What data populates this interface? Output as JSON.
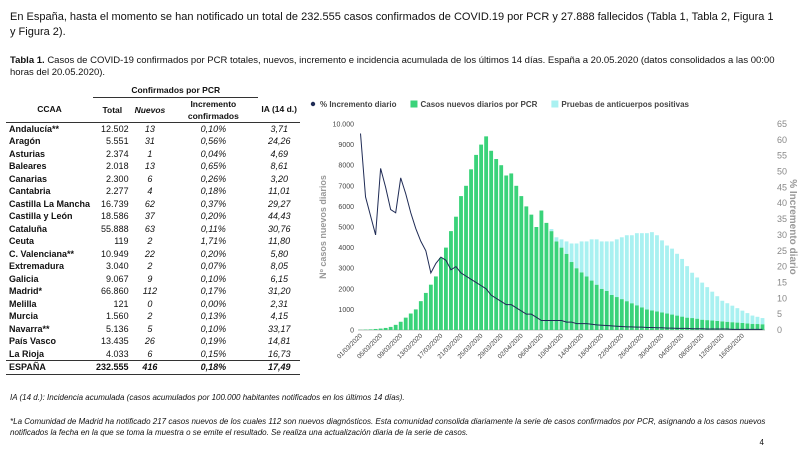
{
  "intro": "En España, hasta el momento se han notificado un total de 232.555 casos confirmados de COVID.19 por PCR y 27.888 fallecidos (Tabla 1, Tabla 2, Figura 1 y Figura 2).",
  "caption": {
    "label": "Tabla 1.",
    "text": "Casos de COVID-19 confirmados por PCR totales, nuevos, incremento e incidencia acumulada de los últimos 14 días. España a 20.05.2020 (datos consolidados a las 00:00 horas del 20.05.2020)."
  },
  "table": {
    "group_header": "Confirmados por PCR",
    "columns": [
      "CCAA",
      "Total",
      "Nuevos",
      "Incremento confirmados",
      "IA (14 d.)"
    ],
    "rows": [
      [
        "Andalucía**",
        "12.502",
        "13",
        "0,10%",
        "3,71"
      ],
      [
        "Aragón",
        "5.551",
        "31",
        "0,56%",
        "24,26"
      ],
      [
        "Asturias",
        "2.374",
        "1",
        "0,04%",
        "4,69"
      ],
      [
        "Baleares",
        "2.018",
        "13",
        "0,65%",
        "8,61"
      ],
      [
        "Canarias",
        "2.300",
        "6",
        "0,26%",
        "3,20"
      ],
      [
        "Cantabria",
        "2.277",
        "4",
        "0,18%",
        "11,01"
      ],
      [
        "Castilla La Mancha",
        "16.739",
        "62",
        "0,37%",
        "29,27"
      ],
      [
        "Castilla y León",
        "18.586",
        "37",
        "0,20%",
        "44,43"
      ],
      [
        "Cataluña",
        "55.888",
        "63",
        "0,11%",
        "30,76"
      ],
      [
        "Ceuta",
        "119",
        "2",
        "1,71%",
        "11,80"
      ],
      [
        "C. Valenciana**",
        "10.949",
        "22",
        "0,20%",
        "5,80"
      ],
      [
        "Extremadura",
        "3.040",
        "2",
        "0,07%",
        "8,05"
      ],
      [
        "Galicia",
        "9.067",
        "9",
        "0,10%",
        "6,15"
      ],
      [
        "Madrid*",
        "66.860",
        "112",
        "0,17%",
        "31,20"
      ],
      [
        "Melilla",
        "121",
        "0",
        "0,00%",
        "2,31"
      ],
      [
        "Murcia",
        "1.560",
        "2",
        "0,13%",
        "4,15"
      ],
      [
        "Navarra**",
        "5.136",
        "5",
        "0,10%",
        "33,17"
      ],
      [
        "País Vasco",
        "13.435",
        "26",
        "0,19%",
        "14,81"
      ],
      [
        "La Rioja",
        "4.033",
        "6",
        "0,15%",
        "16,73"
      ]
    ],
    "total": [
      "ESPAÑA",
      "232.555",
      "416",
      "0,18%",
      "17,49"
    ]
  },
  "chart_data": {
    "type": "bar",
    "stacked": true,
    "ylabel": "Nº casos nuevos diarios",
    "y2label": "% Incremento diario",
    "ylim": [
      0,
      10000
    ],
    "yticks": [
      0,
      1000,
      2000,
      3000,
      4000,
      5000,
      6000,
      7000,
      8000,
      9000,
      {
        "value": 10000,
        "label": "10.000"
      }
    ],
    "y2lim": [
      0,
      65
    ],
    "y2ticks": [
      0,
      5,
      10,
      15,
      20,
      25,
      30,
      35,
      40,
      45,
      50,
      55,
      60,
      65
    ],
    "grid": false,
    "legend": "top",
    "categories": [
      "01/03/2020",
      null,
      null,
      null,
      "05/03/2020",
      null,
      null,
      null,
      "09/03/2020",
      null,
      null,
      null,
      "13/03/2020",
      null,
      null,
      null,
      "17/03/2020",
      null,
      null,
      null,
      "21/03/2020",
      null,
      null,
      null,
      "25/03/2020",
      null,
      null,
      null,
      "29/03/2020",
      null,
      null,
      null,
      "02/04/2020",
      null,
      null,
      null,
      "06/04/2020",
      null,
      null,
      null,
      "10/04/2020",
      null,
      null,
      null,
      "14/04/2020",
      null,
      null,
      null,
      "18/04/2020",
      null,
      null,
      null,
      "22/04/2020",
      null,
      null,
      null,
      "26/04/2020",
      null,
      null,
      null,
      "30/04/2020",
      null,
      null,
      null,
      "04/05/2020",
      null,
      null,
      null,
      "08/05/2020",
      null,
      null,
      null,
      "12/05/2020",
      null,
      null,
      null,
      "16/05/2020",
      null,
      null,
      null,
      null
    ],
    "series": [
      {
        "name": "% Incremento diario",
        "color": "#1f2b55",
        "type": "line",
        "axis": "y2",
        "values": [
          62,
          42,
          36,
          30,
          51,
          45,
          38,
          37,
          48,
          43,
          37,
          32,
          28,
          25,
          18,
          21,
          23,
          22,
          19,
          20,
          18,
          17,
          16,
          15,
          14,
          13,
          11,
          10,
          9,
          8,
          8,
          7,
          6,
          5,
          5,
          4,
          3,
          3,
          3,
          3,
          3,
          2.5,
          2.5,
          2,
          2,
          2,
          1.8,
          1.6,
          1.5,
          1.4,
          1.3,
          1.2,
          1.1,
          1,
          1,
          0.9,
          0.9,
          0.8,
          0.8,
          0.7,
          0.7,
          0.6,
          0.6,
          0.5,
          0.5,
          0.5,
          0.4,
          0.4,
          0.4,
          0.3,
          0.3,
          0.3,
          0.3,
          0.3,
          0.2,
          0.2,
          0.2,
          0.2,
          0.2,
          0.2,
          0.2
        ]
      },
      {
        "name": "Casos nuevos diarios por PCR",
        "color": "#3ad37a",
        "type": "bar",
        "values": [
          10,
          20,
          30,
          50,
          70,
          100,
          150,
          250,
          400,
          600,
          800,
          1000,
          1400,
          1800,
          2200,
          2600,
          3500,
          4000,
          4800,
          5500,
          6500,
          7000,
          7800,
          8500,
          9000,
          9400,
          8700,
          8300,
          8000,
          7500,
          7600,
          7000,
          6500,
          6000,
          5600,
          5000,
          5800,
          5200,
          4800,
          4300,
          4000,
          3700,
          3300,
          3000,
          2800,
          2600,
          2400,
          2200,
          2000,
          1900,
          1700,
          1600,
          1500,
          1400,
          1300,
          1200,
          1100,
          1000,
          950,
          900,
          850,
          800,
          750,
          700,
          650,
          600,
          580,
          550,
          500,
          480,
          460,
          440,
          420,
          400,
          380,
          360,
          340,
          320,
          300,
          290,
          280
        ]
      },
      {
        "name": "Pruebas de anticuerpos positivas",
        "color": "#a9f1f1",
        "type": "bar",
        "values": [
          0,
          0,
          0,
          0,
          0,
          0,
          0,
          0,
          0,
          0,
          0,
          0,
          0,
          0,
          0,
          0,
          0,
          0,
          0,
          0,
          0,
          0,
          0,
          0,
          0,
          0,
          0,
          0,
          0,
          0,
          0,
          0,
          0,
          0,
          0,
          0,
          0,
          0,
          100,
          200,
          400,
          600,
          900,
          1200,
          1500,
          1700,
          2000,
          2200,
          2300,
          2400,
          2600,
          2800,
          3000,
          3200,
          3300,
          3500,
          3600,
          3700,
          3800,
          3700,
          3500,
          3300,
          3200,
          3000,
          2800,
          2500,
          2200,
          2000,
          1800,
          1600,
          1400,
          1200,
          1000,
          900,
          800,
          700,
          600,
          500,
          400,
          350,
          300
        ]
      }
    ]
  },
  "footnotes": [
    "IA (14 d.): Incidencia acumulada (casos acumulados por 100.000 habitantes notificados en los últimos 14 días).",
    "*La Comunidad de Madrid ha notificado 217 casos nuevos de los cuales 112 son nuevos diagnósticos. Esta comunidad consolida diariamente la serie de casos confirmados por PCR, asignando a los casos nuevos notificados la fecha en la que se toma la muestra o se emite el resultado. Se realiza una actualización diaria de la serie de casos."
  ],
  "page_number": "4"
}
